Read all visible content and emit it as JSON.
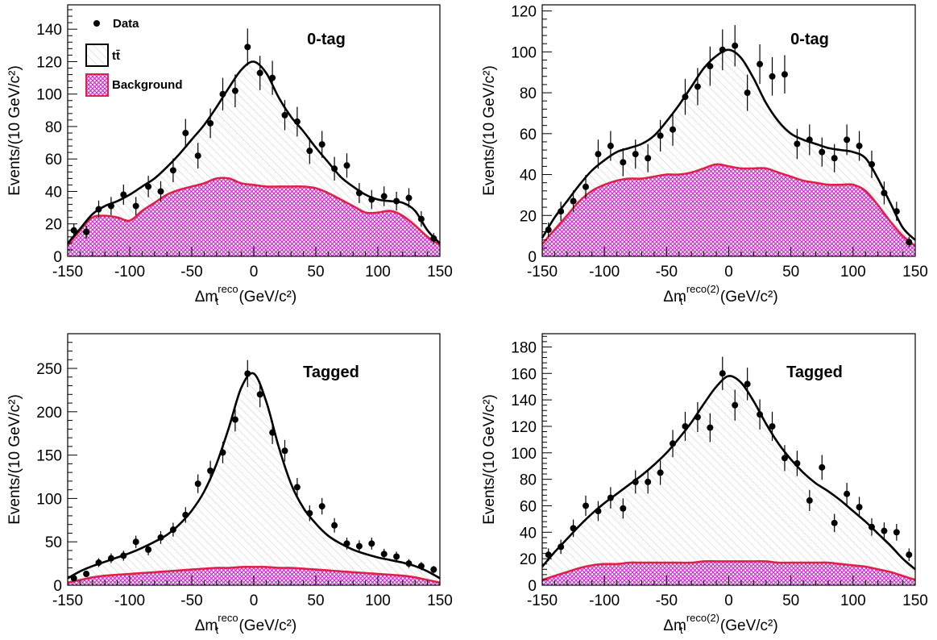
{
  "colors": {
    "signal_line": "#000000",
    "background_line": "#e0204a",
    "background_fill": "#cc33cc",
    "data": "#000000"
  },
  "legend": {
    "data_label": "Data",
    "signal_label": "tt̄",
    "background_label": "Background"
  },
  "chart_data": [
    {
      "type": "histogram-fit",
      "panel": "top-left",
      "tag": "0-tag",
      "ylabel": "Events/(10 GeV/c²)",
      "xlabel_main": "Δm",
      "xlabel_sub": "t",
      "xlabel_sup": "reco",
      "xlabel_unit": " (GeV/c²)",
      "xlim": [
        -150,
        150
      ],
      "ylim": [
        0,
        155
      ],
      "xticks": [
        -150,
        -100,
        -50,
        0,
        50,
        100,
        150
      ],
      "yticks": [
        0,
        20,
        40,
        60,
        80,
        100,
        120,
        140
      ],
      "data": {
        "x": [
          -145,
          -135,
          -125,
          -115,
          -105,
          -95,
          -85,
          -75,
          -65,
          -55,
          -45,
          -35,
          -25,
          -15,
          -5,
          5,
          15,
          25,
          35,
          45,
          55,
          65,
          75,
          85,
          95,
          105,
          115,
          125,
          135,
          145
        ],
        "y": [
          16,
          15,
          29,
          31,
          38,
          31,
          43,
          40,
          53,
          76,
          62,
          82,
          100,
          102,
          129,
          113,
          110,
          87,
          83,
          65,
          69,
          54,
          56,
          39,
          35,
          37,
          34,
          36,
          23,
          11
        ],
        "err": [
          4,
          4,
          5.4,
          5.6,
          6.2,
          5.6,
          6.6,
          6.3,
          7.3,
          8.7,
          7.9,
          9.1,
          10,
          10.1,
          11.4,
          10.6,
          10.5,
          9.3,
          9.1,
          8.1,
          8.3,
          7.3,
          7.5,
          6.2,
          5.9,
          6.1,
          5.8,
          6,
          4.8,
          3.3
        ]
      },
      "fit_total": {
        "x": [
          -150,
          -140,
          -130,
          -120,
          -110,
          -100,
          -90,
          -80,
          -70,
          -60,
          -50,
          -40,
          -30,
          -20,
          -10,
          0,
          10,
          20,
          30,
          40,
          50,
          60,
          70,
          80,
          90,
          100,
          110,
          120,
          130,
          140,
          150
        ],
        "y": [
          8,
          17,
          26,
          31,
          34,
          38,
          43,
          48,
          55,
          63,
          72,
          81,
          92,
          104,
          115,
          120,
          113,
          98,
          86,
          77,
          67,
          58,
          49,
          43,
          38,
          35,
          34,
          33,
          28,
          16,
          8
        ]
      },
      "background": {
        "x": [
          -150,
          -140,
          -130,
          -120,
          -110,
          -100,
          -90,
          -80,
          -70,
          -60,
          -50,
          -40,
          -30,
          -20,
          -10,
          0,
          10,
          20,
          30,
          40,
          50,
          60,
          70,
          80,
          90,
          100,
          110,
          120,
          130,
          140,
          150
        ],
        "y": [
          7,
          16,
          24,
          25,
          24,
          22,
          28,
          33,
          38,
          41,
          43,
          45,
          48,
          48,
          45,
          44,
          43,
          43,
          43,
          43,
          42,
          39,
          35,
          31,
          27,
          27,
          28,
          25,
          19,
          12,
          7
        ]
      }
    },
    {
      "type": "histogram-fit",
      "panel": "top-right",
      "tag": "0-tag",
      "ylabel": "Events/(10 GeV/c²)",
      "xlabel_main": "Δm",
      "xlabel_sub": "t",
      "xlabel_sup": "reco(2)",
      "xlabel_unit": " (GeV/c²)",
      "xlim": [
        -150,
        150
      ],
      "ylim": [
        0,
        123
      ],
      "xticks": [
        -150,
        -100,
        -50,
        0,
        50,
        100,
        150
      ],
      "yticks": [
        0,
        20,
        40,
        60,
        80,
        100,
        120
      ],
      "data": {
        "x": [
          -145,
          -135,
          -125,
          -115,
          -105,
          -95,
          -85,
          -75,
          -65,
          -55,
          -45,
          -35,
          -25,
          -15,
          -5,
          5,
          15,
          25,
          35,
          45,
          55,
          65,
          75,
          85,
          95,
          105,
          115,
          125,
          135,
          145
        ],
        "y": [
          13,
          22,
          27,
          34,
          50,
          54,
          46,
          50,
          48,
          59,
          62,
          78,
          83,
          93,
          101,
          103,
          80,
          94,
          88,
          89,
          55,
          57,
          51,
          48,
          57,
          54,
          45,
          31,
          22,
          7
        ],
        "err": [
          3.6,
          4.7,
          5.2,
          5.8,
          7.1,
          7.3,
          6.8,
          7.1,
          6.9,
          7.7,
          7.9,
          8.8,
          9.1,
          9.6,
          10,
          10.1,
          8.9,
          9.7,
          9.4,
          9.4,
          7.4,
          7.5,
          7.1,
          6.9,
          7.5,
          7.3,
          6.7,
          5.6,
          4.7,
          2.6
        ]
      },
      "fit_total": {
        "x": [
          -150,
          -140,
          -130,
          -120,
          -110,
          -100,
          -90,
          -80,
          -70,
          -60,
          -50,
          -40,
          -30,
          -20,
          -10,
          0,
          10,
          20,
          30,
          40,
          50,
          60,
          70,
          80,
          90,
          100,
          110,
          120,
          130,
          140,
          150
        ],
        "y": [
          9,
          19,
          27,
          35,
          42,
          47,
          51,
          53,
          55,
          59,
          66,
          74,
          83,
          92,
          98,
          101,
          97,
          87,
          75,
          66,
          60,
          57,
          55,
          53,
          52,
          51,
          48,
          38,
          26,
          14,
          8
        ]
      },
      "background": {
        "x": [
          -150,
          -140,
          -130,
          -120,
          -110,
          -100,
          -90,
          -80,
          -70,
          -60,
          -50,
          -40,
          -30,
          -20,
          -10,
          0,
          10,
          20,
          30,
          40,
          50,
          60,
          70,
          80,
          90,
          100,
          110,
          120,
          130,
          140,
          150
        ],
        "y": [
          6,
          13,
          20,
          27,
          32,
          35,
          37,
          38,
          38,
          39,
          40,
          40,
          41,
          43,
          45,
          44,
          43,
          43,
          43,
          41,
          39,
          37,
          36,
          35,
          35,
          35,
          32,
          25,
          17,
          10,
          5
        ]
      }
    },
    {
      "type": "histogram-fit",
      "panel": "bottom-left",
      "tag": "Tagged",
      "ylabel": "Events/(10 GeV/c²)",
      "xlabel_main": "Δm",
      "xlabel_sub": "t",
      "xlabel_sup": "reco",
      "xlabel_unit": " (GeV/c²)",
      "xlim": [
        -150,
        150
      ],
      "ylim": [
        0,
        290
      ],
      "xticks": [
        -150,
        -100,
        -50,
        0,
        50,
        100,
        150
      ],
      "yticks": [
        0,
        50,
        100,
        150,
        200,
        250
      ],
      "data": {
        "x": [
          -145,
          -135,
          -125,
          -115,
          -105,
          -95,
          -85,
          -75,
          -65,
          -55,
          -45,
          -35,
          -25,
          -15,
          -5,
          5,
          15,
          25,
          35,
          45,
          55,
          65,
          75,
          85,
          95,
          105,
          115,
          125,
          135,
          145
        ],
        "y": [
          8,
          13,
          26,
          31,
          34,
          50,
          41,
          55,
          64,
          81,
          117,
          132,
          153,
          191,
          244,
          220,
          176,
          155,
          113,
          83,
          91,
          69,
          48,
          45,
          48,
          36,
          33,
          25,
          22,
          18
        ],
        "err": [
          2.8,
          3.6,
          5.1,
          5.6,
          5.8,
          7.1,
          6.4,
          7.4,
          8,
          9,
          10.8,
          11.5,
          12.4,
          13.8,
          15.6,
          14.8,
          13.3,
          12.4,
          10.6,
          9.1,
          9.5,
          8.3,
          6.9,
          6.7,
          6.9,
          6,
          5.7,
          5,
          4.7,
          4.2
        ]
      },
      "fit_total": {
        "x": [
          -150,
          -140,
          -130,
          -120,
          -110,
          -100,
          -90,
          -80,
          -70,
          -60,
          -50,
          -40,
          -30,
          -20,
          -10,
          0,
          10,
          20,
          30,
          40,
          50,
          60,
          70,
          80,
          90,
          100,
          110,
          120,
          130,
          140,
          150
        ],
        "y": [
          8,
          16,
          22,
          27,
          32,
          37,
          43,
          50,
          58,
          70,
          86,
          108,
          140,
          182,
          228,
          244,
          212,
          160,
          117,
          89,
          71,
          57,
          48,
          41,
          36,
          32,
          29,
          26,
          22,
          16,
          8
        ]
      },
      "background": {
        "x": [
          -150,
          -140,
          -130,
          -120,
          -110,
          -100,
          -90,
          -80,
          -70,
          -60,
          -50,
          -40,
          -30,
          -20,
          -10,
          0,
          10,
          20,
          30,
          40,
          50,
          60,
          70,
          80,
          90,
          100,
          110,
          120,
          130,
          140,
          150
        ],
        "y": [
          3,
          6,
          9,
          11,
          12,
          13,
          14,
          15,
          16,
          17,
          18,
          19,
          20,
          20,
          21,
          21,
          21,
          20,
          20,
          19,
          18,
          17,
          16,
          15,
          14,
          13,
          12,
          11,
          9,
          6,
          3
        ]
      }
    },
    {
      "type": "histogram-fit",
      "panel": "bottom-right",
      "tag": "Tagged",
      "ylabel": "Events/(10 GeV/c²)",
      "xlabel_main": "Δm",
      "xlabel_sub": "t",
      "xlabel_sup": "reco(2)",
      "xlabel_unit": " (GeV/c²)",
      "xlim": [
        -150,
        150
      ],
      "ylim": [
        0,
        190
      ],
      "xticks": [
        -150,
        -100,
        -50,
        0,
        50,
        100,
        150
      ],
      "yticks": [
        0,
        20,
        40,
        60,
        80,
        100,
        120,
        140,
        160,
        180
      ],
      "data": {
        "x": [
          -145,
          -135,
          -125,
          -115,
          -105,
          -95,
          -85,
          -75,
          -65,
          -55,
          -45,
          -35,
          -25,
          -15,
          -5,
          5,
          15,
          25,
          35,
          45,
          55,
          65,
          75,
          85,
          95,
          105,
          115,
          125,
          135,
          145
        ],
        "y": [
          23,
          29,
          43,
          60,
          56,
          66,
          58,
          78,
          78,
          85,
          107,
          120,
          127,
          119,
          160,
          136,
          152,
          129,
          120,
          96,
          92,
          64,
          89,
          47,
          69,
          59,
          44,
          41,
          40,
          23
        ],
        "err": [
          4.8,
          5.4,
          6.6,
          7.7,
          7.5,
          8.1,
          7.6,
          8.8,
          8.8,
          9.2,
          10.3,
          11,
          11.3,
          10.9,
          12.6,
          11.7,
          12.3,
          11.4,
          11,
          9.8,
          9.6,
          8,
          9.4,
          6.9,
          8.3,
          7.7,
          6.6,
          6.4,
          6.3,
          4.8
        ]
      },
      "fit_total": {
        "x": [
          -150,
          -140,
          -130,
          -120,
          -110,
          -100,
          -90,
          -80,
          -70,
          -60,
          -50,
          -40,
          -30,
          -20,
          -10,
          0,
          10,
          20,
          30,
          40,
          50,
          60,
          70,
          80,
          90,
          100,
          110,
          120,
          130,
          140,
          150
        ],
        "y": [
          14,
          25,
          35,
          45,
          54,
          62,
          69,
          76,
          83,
          91,
          100,
          111,
          123,
          137,
          150,
          158,
          153,
          139,
          122,
          107,
          95,
          85,
          77,
          71,
          64,
          56,
          48,
          39,
          30,
          20,
          12
        ]
      },
      "background": {
        "x": [
          -150,
          -140,
          -130,
          -120,
          -110,
          -100,
          -90,
          -80,
          -70,
          -60,
          -50,
          -40,
          -30,
          -20,
          -10,
          0,
          10,
          20,
          30,
          40,
          50,
          60,
          70,
          80,
          90,
          100,
          110,
          120,
          130,
          140,
          150
        ],
        "y": [
          4,
          7,
          10,
          13,
          15,
          16,
          16,
          17,
          17,
          17,
          17,
          17,
          17,
          18,
          18,
          18,
          18,
          18,
          18,
          17,
          17,
          17,
          17,
          17,
          16,
          15,
          14,
          12,
          10,
          7,
          4
        ]
      }
    }
  ]
}
